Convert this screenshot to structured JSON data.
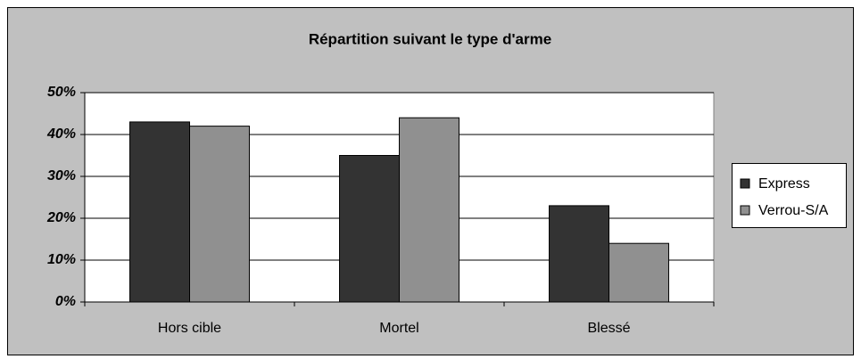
{
  "chart_data": {
    "type": "bar",
    "title": "Répartition suivant le type d'arme",
    "categories": [
      "Hors cible",
      "Mortel",
      "Blessé"
    ],
    "series": [
      {
        "name": "Express",
        "color": "#333333",
        "values": [
          43,
          35,
          23
        ]
      },
      {
        "name": "Verrou-S/A",
        "color": "#909090",
        "values": [
          42,
          44,
          14
        ]
      }
    ],
    "ylim": [
      0,
      50
    ],
    "yticks": [
      {
        "value": 0,
        "label": "0%"
      },
      {
        "value": 10,
        "label": "10%"
      },
      {
        "value": 20,
        "label": "20%"
      },
      {
        "value": 30,
        "label": "30%"
      },
      {
        "value": 40,
        "label": "40%"
      },
      {
        "value": 50,
        "label": "50%"
      }
    ],
    "grid": true,
    "legend": "right"
  }
}
